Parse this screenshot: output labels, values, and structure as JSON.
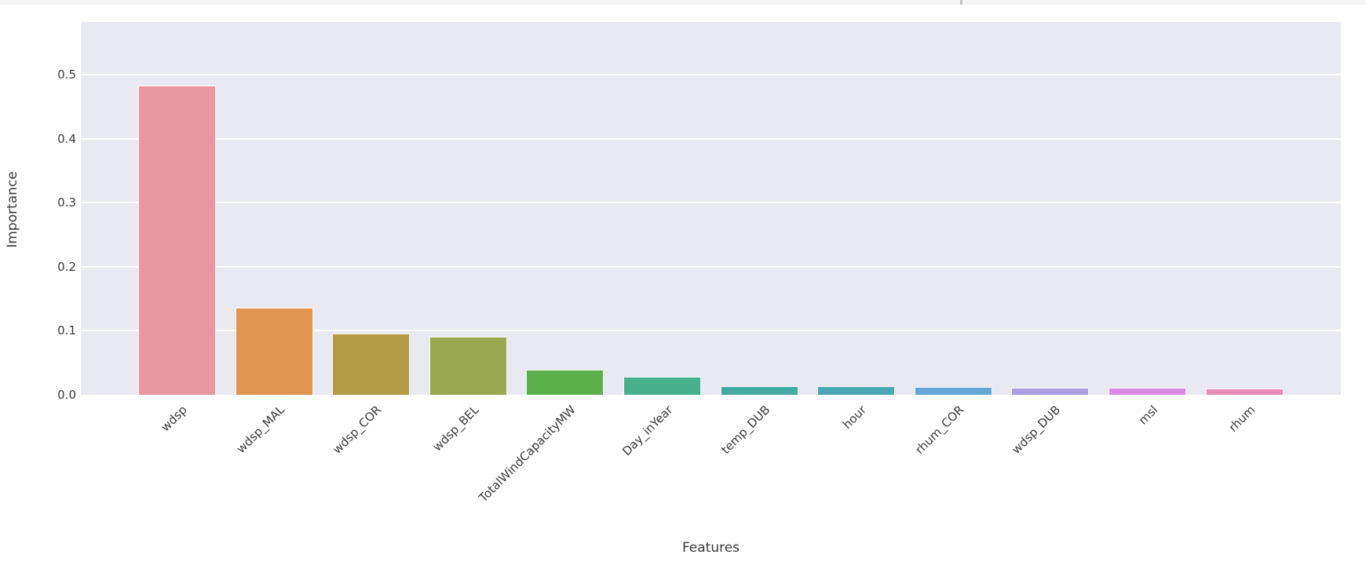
{
  "chrome": {
    "strip_color": "#f5f5f6",
    "strip_tick_color": "#c4c5c8"
  },
  "chart_data": {
    "type": "bar",
    "title": "",
    "xlabel": "Features",
    "ylabel": "Importance",
    "categories": [
      "wdsp",
      "wdsp_MAL",
      "wdsp_COR",
      "wdsp_BEL",
      "TotalWindCapacityMW",
      "Day_inYear",
      "temp_DUB",
      "hour",
      "rhum_COR",
      "wdsp_DUB",
      "msl",
      "rhum"
    ],
    "values": [
      0.483,
      0.136,
      0.096,
      0.091,
      0.039,
      0.028,
      0.014,
      0.013,
      0.012,
      0.011,
      0.011,
      0.01
    ],
    "bar_colors": [
      "#ea96a2",
      "#e0944f",
      "#b39b45",
      "#9aa850",
      "#5cb04c",
      "#47b08c",
      "#44aaa2",
      "#4ba6b4",
      "#64a8d8",
      "#ab9fe1",
      "#d98be4",
      "#e78bb3"
    ],
    "ytick_labels": [
      "0.0",
      "0.1",
      "0.2",
      "0.3",
      "0.4",
      "0.5"
    ],
    "yticks": [
      0.0,
      0.1,
      0.2,
      0.3,
      0.4,
      0.5
    ],
    "ylim": [
      0,
      0.582
    ],
    "grid": true,
    "legend": false,
    "plot_bg_color": "#e9e9f1",
    "grid_color": "#ffffff",
    "text_color": "#3a3a3a"
  }
}
